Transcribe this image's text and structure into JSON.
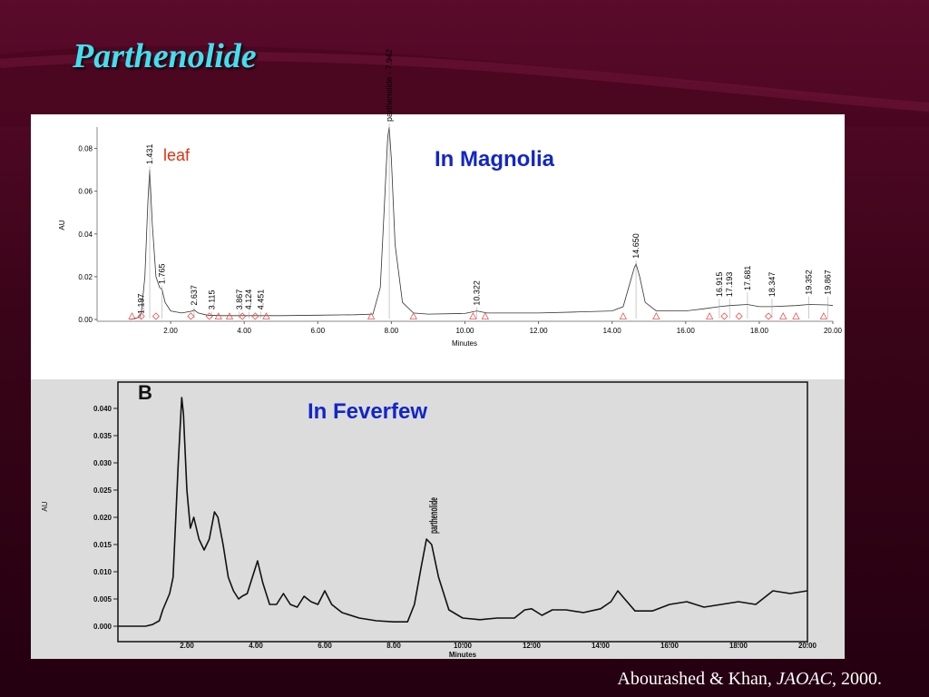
{
  "slide": {
    "title": "Parthenolide",
    "citation_authors": "Abourashed & Khan, ",
    "citation_journal": "JAOAC",
    "citation_year": ", 2000."
  },
  "colors": {
    "background": "#3a0418",
    "title": "#40e0f0",
    "caption": "#1226c8",
    "leaf_label": "#e03010",
    "trace": "#000000",
    "marker": "#e85050"
  },
  "chart_data": [
    {
      "type": "line",
      "caption": "In Magnolia",
      "annotation": "leaf",
      "ylabel": "AU",
      "xlabel": "Minutes",
      "xlim": [
        0,
        20
      ],
      "ylim": [
        0,
        0.09
      ],
      "y_ticks": [
        "0.00",
        "0.02",
        "0.04",
        "0.06",
        "0.08"
      ],
      "x_ticks": [
        "2.00",
        "4.00",
        "6.00",
        "8.00",
        "10.00",
        "12.00",
        "14.00",
        "16.00",
        "18.00",
        "20.00"
      ],
      "peak_labels": [
        {
          "t": 1.197,
          "text": "1.197",
          "h": 0.0
        },
        {
          "t": 1.431,
          "text": "1.431",
          "h": 0.07
        },
        {
          "t": 1.765,
          "text": "1.765",
          "h": 0.014
        },
        {
          "t": 2.637,
          "text": "2.637",
          "h": 0.004
        },
        {
          "t": 3.115,
          "text": "3.115",
          "h": 0.002
        },
        {
          "t": 3.867,
          "text": "3.867",
          "h": 0.002
        },
        {
          "t": 4.124,
          "text": "4.124",
          "h": 0.002
        },
        {
          "t": 4.451,
          "text": "4.451",
          "h": 0.002
        },
        {
          "t": 7.942,
          "text": "parthenolide - 7.942",
          "h": 0.09
        },
        {
          "t": 10.322,
          "text": "10.322",
          "h": 0.004
        },
        {
          "t": 14.65,
          "text": "14.650",
          "h": 0.026
        },
        {
          "t": 16.915,
          "text": "16.915",
          "h": 0.008
        },
        {
          "t": 17.193,
          "text": "17.193",
          "h": 0.008
        },
        {
          "t": 17.681,
          "text": "17.681",
          "h": 0.011
        },
        {
          "t": 18.347,
          "text": "18.347",
          "h": 0.008
        },
        {
          "t": 19.352,
          "text": "19.352",
          "h": 0.009
        },
        {
          "t": 19.867,
          "text": "19.867",
          "h": 0.009
        }
      ],
      "series": [
        {
          "x": [
            0.9,
            1.15,
            1.2,
            1.3,
            1.38,
            1.431,
            1.5,
            1.6,
            1.7,
            1.765,
            1.85,
            2.0,
            2.3,
            2.6,
            2.637,
            2.75,
            3.0,
            3.4,
            3.9,
            4.4,
            5.0,
            6.0,
            7.0,
            7.5,
            7.7,
            7.8,
            7.9,
            7.942,
            8.0,
            8.1,
            8.3,
            8.6,
            9.0,
            10.0,
            10.322,
            10.6,
            11.0,
            12.0,
            13.0,
            14.0,
            14.3,
            14.5,
            14.6,
            14.65,
            14.75,
            14.9,
            15.2,
            16.0,
            16.5,
            16.915,
            17.193,
            17.681,
            18.0,
            18.347,
            19.0,
            19.352,
            19.867,
            20.0
          ],
          "y": [
            0.0,
            0.001,
            0.003,
            0.02,
            0.055,
            0.07,
            0.045,
            0.02,
            0.015,
            0.014,
            0.008,
            0.004,
            0.003,
            0.004,
            0.0045,
            0.003,
            0.002,
            0.0018,
            0.0018,
            0.0018,
            0.0018,
            0.002,
            0.0022,
            0.0025,
            0.015,
            0.05,
            0.085,
            0.09,
            0.075,
            0.035,
            0.008,
            0.003,
            0.0025,
            0.0028,
            0.004,
            0.003,
            0.003,
            0.003,
            0.0035,
            0.004,
            0.006,
            0.018,
            0.024,
            0.026,
            0.02,
            0.008,
            0.004,
            0.004,
            0.005,
            0.006,
            0.0065,
            0.007,
            0.006,
            0.006,
            0.0065,
            0.007,
            0.0068,
            0.0065
          ]
        }
      ]
    },
    {
      "type": "line",
      "caption": "In Feverfew",
      "panel_label": "B",
      "peak_label": "parthenolide",
      "ylabel": "AU",
      "xlabel": "Minutes",
      "xlim": [
        0,
        20
      ],
      "ylim": [
        0,
        0.043
      ],
      "y_ticks": [
        "0.000",
        "0.005",
        "0.010",
        "0.015",
        "0.020",
        "0.025",
        "0.030",
        "0.035",
        "0.040"
      ],
      "x_ticks": [
        "2.00",
        "4.00",
        "6.00",
        "8.00",
        "10.00",
        "12.00",
        "14.00",
        "16.00",
        "18.00",
        "20.00"
      ],
      "series": [
        {
          "x": [
            0.0,
            0.8,
            1.0,
            1.2,
            1.3,
            1.5,
            1.6,
            1.75,
            1.85,
            1.9,
            2.0,
            2.1,
            2.2,
            2.35,
            2.5,
            2.65,
            2.8,
            2.9,
            3.05,
            3.2,
            3.35,
            3.5,
            3.6,
            3.75,
            3.9,
            4.05,
            4.2,
            4.4,
            4.6,
            4.8,
            5.0,
            5.2,
            5.4,
            5.6,
            5.8,
            6.0,
            6.2,
            6.5,
            7.0,
            7.5,
            8.0,
            8.4,
            8.6,
            8.8,
            8.95,
            9.1,
            9.3,
            9.6,
            10.0,
            10.5,
            11.0,
            11.5,
            11.8,
            12.0,
            12.3,
            12.6,
            13.0,
            13.5,
            14.0,
            14.3,
            14.5,
            14.7,
            15.0,
            15.5,
            16.0,
            16.5,
            17.0,
            17.5,
            18.0,
            18.5,
            19.0,
            19.5,
            20.0
          ],
          "y": [
            0.0,
            0.0,
            0.0003,
            0.001,
            0.003,
            0.006,
            0.009,
            0.03,
            0.042,
            0.039,
            0.025,
            0.018,
            0.02,
            0.016,
            0.014,
            0.016,
            0.021,
            0.02,
            0.015,
            0.009,
            0.0065,
            0.005,
            0.0055,
            0.006,
            0.009,
            0.012,
            0.008,
            0.004,
            0.004,
            0.006,
            0.004,
            0.0035,
            0.0055,
            0.0045,
            0.004,
            0.0065,
            0.004,
            0.0025,
            0.0015,
            0.001,
            0.0008,
            0.0008,
            0.004,
            0.011,
            0.016,
            0.015,
            0.009,
            0.003,
            0.0015,
            0.0012,
            0.0015,
            0.0015,
            0.003,
            0.0032,
            0.002,
            0.003,
            0.003,
            0.0025,
            0.0032,
            0.0045,
            0.0065,
            0.005,
            0.0028,
            0.0028,
            0.004,
            0.0045,
            0.0035,
            0.004,
            0.0045,
            0.004,
            0.0065,
            0.006,
            0.0065
          ]
        }
      ]
    }
  ]
}
